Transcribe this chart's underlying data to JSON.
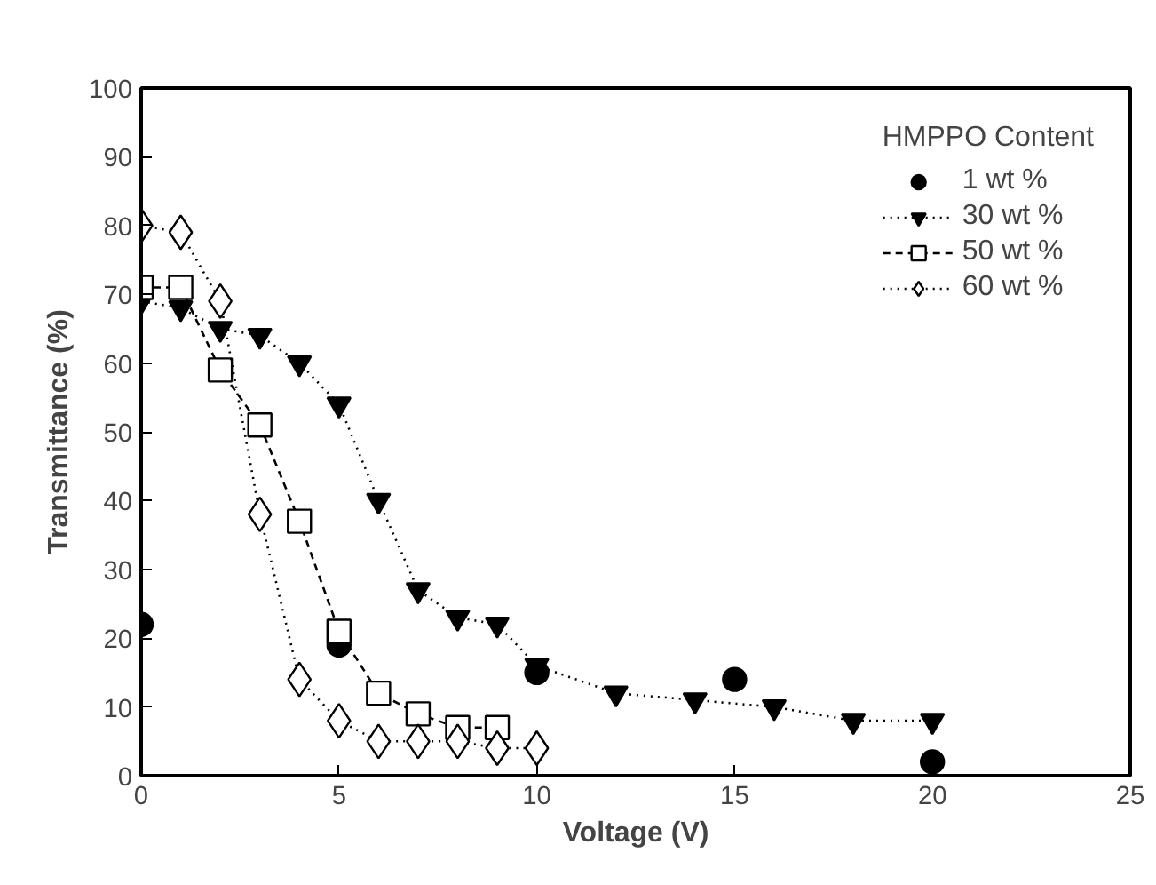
{
  "chart_data": {
    "type": "line",
    "xlabel": "Voltage (V)",
    "ylabel": "Transmittance (%)",
    "legend_title": "HMPPO Content",
    "legend": "top right",
    "grid": false,
    "xlim": [
      0,
      25
    ],
    "xticks": [
      0,
      5,
      10,
      15,
      20,
      25
    ],
    "ylim": [
      0,
      100
    ],
    "yticks": [
      0,
      10,
      20,
      30,
      40,
      50,
      60,
      70,
      80,
      90,
      100
    ],
    "series": [
      {
        "name": "1 wt %",
        "type": "scatter",
        "marker": "circle",
        "color": "#000000",
        "x": [
          0,
          5,
          10,
          15,
          20
        ],
        "values": [
          22,
          19,
          15,
          14,
          2
        ]
      },
      {
        "name": "30 wt %",
        "marker": "triangle",
        "line_style": "dotted",
        "color": "#000000",
        "x": [
          0,
          1,
          2,
          3,
          4,
          5,
          6,
          7,
          8,
          9,
          10,
          12,
          14,
          16,
          18,
          20
        ],
        "values": [
          69,
          68,
          65,
          64,
          60,
          54,
          40,
          27,
          23,
          22,
          16,
          12,
          11,
          10,
          8,
          8
        ]
      },
      {
        "name": "50 wt %",
        "marker": "square",
        "line_style": "dashed",
        "color": "#000000",
        "x": [
          0,
          1,
          2,
          3,
          4,
          5,
          6,
          7,
          8,
          9
        ],
        "values": [
          71,
          71,
          59,
          51,
          37,
          21,
          12,
          9,
          7,
          7
        ]
      },
      {
        "name": "60 wt %",
        "marker": "diamond",
        "line_style": "dotted",
        "color": "#000000",
        "x": [
          0,
          1,
          2,
          3,
          4,
          5,
          6,
          7,
          8,
          9,
          10
        ],
        "values": [
          80,
          79,
          69,
          38,
          14,
          8,
          5,
          5,
          5,
          4,
          4
        ]
      }
    ]
  }
}
